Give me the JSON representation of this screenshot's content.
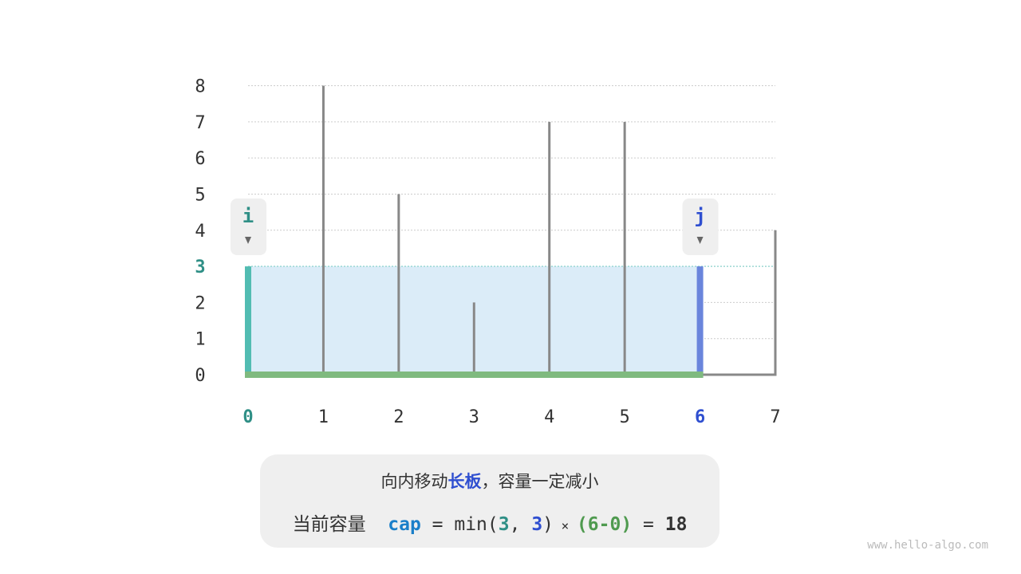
{
  "chart_data": {
    "type": "bar",
    "categories": [
      "0",
      "1",
      "2",
      "3",
      "4",
      "5",
      "6",
      "7"
    ],
    "values": [
      3,
      8,
      5,
      2,
      7,
      7,
      3,
      4
    ],
    "y_ticks": [
      "0",
      "1",
      "2",
      "3",
      "4",
      "5",
      "6",
      "7",
      "8"
    ],
    "ylim": [
      0,
      8
    ],
    "grid": true,
    "pointers": [
      {
        "label": "i",
        "index": 0,
        "color": "#2f8f86"
      },
      {
        "label": "j",
        "index": 6,
        "color": "#2f4fd0"
      }
    ],
    "water_level": 3,
    "colors": {
      "bar": "#888888",
      "i_bar": "#52bcb2",
      "j_bar": "#6a85dc",
      "water": "#dbecf8",
      "base": "#7fba7f",
      "grid": "#cccccc"
    }
  },
  "caption": {
    "line1_pre": "向内移动",
    "line1_highlight": "长板",
    "line1_post": "，容量一定减小",
    "line2_label": "当前容量",
    "var": "cap",
    "eq": " = ",
    "min_open": "min(",
    "a": "3",
    "comma": ", ",
    "b": "3",
    "min_close": ")",
    "times": " × ",
    "width": "(6-0)",
    "eq2": " = ",
    "result": "18"
  },
  "watermark": "www.hello-algo.com"
}
